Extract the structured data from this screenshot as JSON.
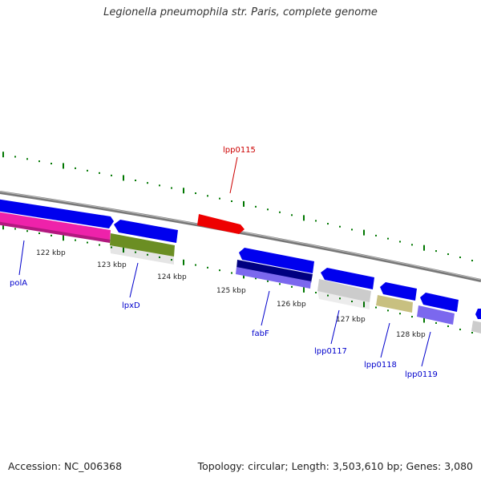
{
  "title": "Legionella pneumophila str. Paris, complete genome",
  "footer": {
    "accession": "Accession: NC_006368",
    "summary": "Topology: circular; Length: 3,503,610 bp; Genes: 3,080"
  },
  "scale_ticks": [
    "122 kbp",
    "123 kbp",
    "124 kbp",
    "125 kbp",
    "126 kbp",
    "127 kbp",
    "128 kbp"
  ],
  "genes": [
    {
      "label": "polA",
      "color": "#0000cc"
    },
    {
      "label": "lpxD",
      "color": "#0000cc"
    },
    {
      "label": "lpp0115",
      "color": "#cc0000"
    },
    {
      "label": "fabF",
      "color": "#0000cc"
    },
    {
      "label": "lpp0117",
      "color": "#0000cc"
    },
    {
      "label": "lpp0118",
      "color": "#0000cc"
    },
    {
      "label": "lpp0119",
      "color": "#0000cc"
    }
  ],
  "colors": {
    "backbone": "#7a7a7a",
    "forward_cds": "#0000ee",
    "highlight_cds": "#ee0000",
    "cog_pink": "#ee22aa",
    "cog_olive": "#6b8e23",
    "cog_navy": "#000080",
    "cog_lavender": "#7b68ee",
    "cog_gray": "#c8c8c8",
    "cog_khaki": "#c8c080",
    "tick": "#007700"
  }
}
